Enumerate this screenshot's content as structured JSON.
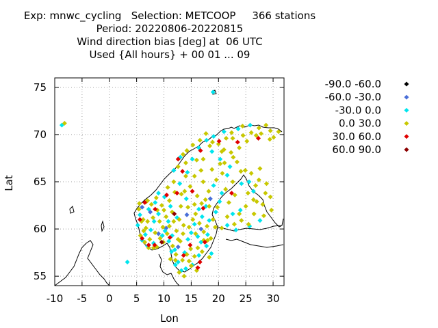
{
  "title_lines": [
    "Exp: mnwc_cycling   Selection: METCOOP     366 stations",
    "Period: 20220806-20220815",
    "Wind direction bias [deg] at  06 UTC",
    "Used {All hours} + 00 01 ... 09"
  ],
  "chart_data": {
    "type": "scatter",
    "xlabel": "Lon",
    "ylabel": "Lat",
    "xlim": [
      -10,
      32
    ],
    "ylim": [
      54,
      76
    ],
    "xticks": [
      -10,
      -5,
      0,
      5,
      10,
      15,
      20,
      25,
      30
    ],
    "yticks": [
      55,
      60,
      65,
      70,
      75
    ],
    "grid": true,
    "legend_position": "right",
    "series": [
      {
        "name": "-90.0 -60.0",
        "color": "#000000",
        "points": []
      },
      {
        "name": "-60.0 -30.0",
        "color": "#4a6fd8",
        "points": [
          [
            6.0,
            62.3
          ],
          [
            7.5,
            61.8
          ],
          [
            9.0,
            59.5
          ],
          [
            10.4,
            60.1
          ],
          [
            12.6,
            58.1
          ],
          [
            14.2,
            61.5
          ],
          [
            16.8,
            60.0
          ],
          [
            18.5,
            63.2
          ]
        ]
      },
      {
        "name": "-30.0 0.0",
        "color": "#00e5ee",
        "points": [
          [
            -8.7,
            71.0
          ],
          [
            3.3,
            56.5
          ],
          [
            19.0,
            74.5
          ],
          [
            5.6,
            61.5
          ],
          [
            5.2,
            60.4
          ],
          [
            6.0,
            58.8
          ],
          [
            7.0,
            58.2
          ],
          [
            8.1,
            58.5
          ],
          [
            9.7,
            59.3
          ],
          [
            10.2,
            59.8
          ],
          [
            10.8,
            60.8
          ],
          [
            11.5,
            59.3
          ],
          [
            12.0,
            57.8
          ],
          [
            12.6,
            56.5
          ],
          [
            13.2,
            55.6
          ],
          [
            13.8,
            57.5
          ],
          [
            14.4,
            58.9
          ],
          [
            15.0,
            59.6
          ],
          [
            15.6,
            60.5
          ],
          [
            16.2,
            59.2
          ],
          [
            17.0,
            61.3
          ],
          [
            17.7,
            62.4
          ],
          [
            16.4,
            57.2
          ],
          [
            15.2,
            56.2
          ],
          [
            14.0,
            55.8
          ],
          [
            18.0,
            59.4
          ],
          [
            18.7,
            57.4
          ],
          [
            12.4,
            61.2
          ],
          [
            11.2,
            62.4
          ],
          [
            10.1,
            63.4
          ],
          [
            9.0,
            63.8
          ],
          [
            8.4,
            62.8
          ],
          [
            7.2,
            62.1
          ],
          [
            12.9,
            64.8
          ],
          [
            14.3,
            66.0
          ],
          [
            15.2,
            67.4
          ],
          [
            16.4,
            68.6
          ],
          [
            17.8,
            69.4
          ],
          [
            19.1,
            69.8
          ],
          [
            21.0,
            70.3
          ],
          [
            23.6,
            70.6
          ],
          [
            25.8,
            71.0
          ],
          [
            13.0,
            67.6
          ],
          [
            18.8,
            68.2
          ],
          [
            20.3,
            67.4
          ],
          [
            21.6,
            65.7
          ],
          [
            22.1,
            66.6
          ],
          [
            24.2,
            64.8
          ],
          [
            25.6,
            65.0
          ],
          [
            26.4,
            64.0
          ],
          [
            24.0,
            62.0
          ],
          [
            22.6,
            61.6
          ],
          [
            21.6,
            60.4
          ],
          [
            25.7,
            60.3
          ],
          [
            27.6,
            60.9
          ],
          [
            23.2,
            59.9
          ],
          [
            20.6,
            63.8
          ],
          [
            19.1,
            64.6
          ],
          [
            11.8,
            66.2
          ],
          [
            14.1,
            63.2
          ],
          [
            16.4,
            62.1
          ],
          [
            9.0,
            61.6
          ],
          [
            8.2,
            60.8
          ],
          [
            6.6,
            59.4
          ],
          [
            7.6,
            59.9
          ],
          [
            10.9,
            58.7
          ],
          [
            11.4,
            57.6
          ],
          [
            12.1,
            56.2
          ],
          [
            16.8,
            58.6
          ],
          [
            17.8,
            58.2
          ],
          [
            18.3,
            60.9
          ],
          [
            19.5,
            61.8
          ],
          [
            20.2,
            62.9
          ]
        ]
      },
      {
        "name": "0.0 30.0",
        "color": "#c8c800",
        "points": [
          [
            -8.2,
            71.2
          ],
          [
            5.4,
            62.1
          ],
          [
            6.2,
            61.0
          ],
          [
            6.7,
            60.1
          ],
          [
            5.7,
            59.3
          ],
          [
            6.5,
            58.6
          ],
          [
            7.4,
            58.9
          ],
          [
            8.7,
            58.1
          ],
          [
            9.3,
            59.0
          ],
          [
            10.6,
            59.5
          ],
          [
            11.0,
            60.3
          ],
          [
            11.8,
            60.8
          ],
          [
            12.3,
            59.8
          ],
          [
            13.0,
            58.7
          ],
          [
            13.5,
            59.5
          ],
          [
            14.6,
            60.2
          ],
          [
            15.3,
            61.0
          ],
          [
            15.8,
            59.5
          ],
          [
            16.5,
            60.6
          ],
          [
            17.3,
            59.7
          ],
          [
            17.9,
            60.3
          ],
          [
            18.6,
            59.0
          ],
          [
            14.9,
            57.9
          ],
          [
            15.6,
            57.1
          ],
          [
            13.4,
            56.7
          ],
          [
            14.6,
            56.6
          ],
          [
            12.8,
            55.4
          ],
          [
            13.7,
            55.0
          ],
          [
            11.6,
            58.2
          ],
          [
            12.2,
            57.3
          ],
          [
            10.4,
            61.3
          ],
          [
            9.6,
            62.5
          ],
          [
            8.8,
            62.0
          ],
          [
            7.7,
            62.6
          ],
          [
            6.8,
            62.9
          ],
          [
            11.0,
            63.0
          ],
          [
            12.0,
            63.9
          ],
          [
            13.2,
            63.7
          ],
          [
            14.8,
            64.5
          ],
          [
            15.6,
            65.6
          ],
          [
            16.8,
            66.2
          ],
          [
            17.2,
            65.0
          ],
          [
            18.2,
            64.0
          ],
          [
            17.6,
            63.1
          ],
          [
            16.1,
            63.5
          ],
          [
            15.6,
            62.6
          ],
          [
            14.4,
            62.3
          ],
          [
            13.1,
            62.4
          ],
          [
            12.6,
            66.6
          ],
          [
            13.5,
            67.9
          ],
          [
            14.2,
            68.3
          ],
          [
            15.3,
            68.9
          ],
          [
            16.6,
            69.4
          ],
          [
            17.7,
            70.1
          ],
          [
            18.9,
            69.2
          ],
          [
            20.0,
            69.0
          ],
          [
            21.4,
            69.6
          ],
          [
            22.4,
            70.2
          ],
          [
            24.4,
            70.9
          ],
          [
            26.0,
            70.2
          ],
          [
            27.4,
            70.7
          ],
          [
            28.7,
            71.0
          ],
          [
            29.5,
            70.4
          ],
          [
            30.1,
            69.7
          ],
          [
            31.0,
            70.3
          ],
          [
            29.4,
            69.5
          ],
          [
            26.9,
            69.9
          ],
          [
            25.2,
            69.3
          ],
          [
            23.8,
            68.6
          ],
          [
            22.3,
            68.1
          ],
          [
            21.0,
            68.4
          ],
          [
            20.3,
            66.9
          ],
          [
            21.1,
            67.0
          ],
          [
            23.4,
            67.1
          ],
          [
            24.9,
            66.2
          ],
          [
            26.0,
            65.9
          ],
          [
            27.6,
            66.4
          ],
          [
            28.8,
            64.8
          ],
          [
            29.5,
            63.4
          ],
          [
            28.1,
            62.6
          ],
          [
            27.0,
            62.9
          ],
          [
            29.7,
            62.0
          ],
          [
            28.3,
            61.4
          ],
          [
            26.5,
            61.6
          ],
          [
            25.0,
            62.4
          ],
          [
            24.2,
            60.9
          ],
          [
            22.9,
            60.5
          ],
          [
            21.6,
            61.3
          ],
          [
            21.9,
            62.8
          ],
          [
            23.0,
            63.6
          ],
          [
            25.4,
            63.8
          ],
          [
            26.8,
            64.6
          ],
          [
            27.4,
            65.2
          ],
          [
            19.6,
            65.2
          ],
          [
            18.8,
            66.3
          ],
          [
            19.8,
            62.3
          ],
          [
            19.0,
            61.0
          ],
          [
            17.3,
            58.8
          ],
          [
            16.2,
            58.0
          ],
          [
            15.0,
            56.1
          ],
          [
            16.0,
            55.6
          ],
          [
            18.3,
            57.0
          ],
          [
            11.2,
            56.8
          ],
          [
            12.6,
            58.9
          ],
          [
            9.8,
            60.2
          ],
          [
            8.4,
            59.6
          ],
          [
            7.0,
            60.8
          ],
          [
            8.0,
            61.2
          ],
          [
            9.2,
            60.8
          ],
          [
            10.0,
            62.0
          ],
          [
            11.5,
            61.8
          ],
          [
            12.8,
            61.0
          ],
          [
            13.6,
            60.4
          ],
          [
            19.4,
            60.2
          ],
          [
            20.6,
            60.1
          ],
          [
            22.6,
            69.6
          ],
          [
            16.0,
            67.3
          ],
          [
            14.0,
            67.0
          ],
          [
            18.4,
            68.8
          ],
          [
            20.6,
            68.2
          ],
          [
            22.7,
            67.6
          ],
          [
            24.1,
            66.1
          ],
          [
            26.4,
            63.1
          ],
          [
            28.6,
            63.8
          ],
          [
            24.5,
            69.9
          ],
          [
            27.8,
            70.1
          ],
          [
            25.5,
            60.5
          ],
          [
            23.8,
            61.6
          ],
          [
            14.0,
            65.6
          ],
          [
            17.2,
            67.4
          ],
          [
            10.7,
            64.4
          ],
          [
            11.8,
            65.0
          ],
          [
            13.8,
            64.0
          ],
          [
            15.8,
            61.6
          ],
          [
            16.9,
            62.7
          ],
          [
            18.3,
            62.4
          ],
          [
            20.7,
            65.9
          ],
          [
            21.3,
            64.2
          ],
          [
            22.6,
            65.0
          ],
          [
            9.9,
            58.6
          ],
          [
            8.1,
            58.0
          ],
          [
            7.2,
            58.0
          ],
          [
            6.3,
            59.8
          ],
          [
            5.9,
            60.8
          ],
          [
            5.5,
            62.7
          ],
          [
            7.0,
            63.0
          ],
          [
            8.6,
            63.3
          ],
          [
            12.1,
            56.7
          ],
          [
            14.2,
            57.3
          ],
          [
            17.0,
            57.6
          ],
          [
            18.0,
            58.8
          ]
        ]
      },
      {
        "name": "30.0 60.0",
        "color": "#e00000",
        "points": [
          [
            6.5,
            62.8
          ],
          [
            8.4,
            62.1
          ],
          [
            5.6,
            61.0
          ],
          [
            6.0,
            59.0
          ],
          [
            7.2,
            58.3
          ],
          [
            8.3,
            58.3
          ],
          [
            11.1,
            59.1
          ],
          [
            12.4,
            63.8
          ],
          [
            13.4,
            66.1
          ],
          [
            12.6,
            67.4
          ],
          [
            17.2,
            62.2
          ],
          [
            17.5,
            58.6
          ],
          [
            13.6,
            57.2
          ],
          [
            16.6,
            56.5
          ],
          [
            16.2,
            55.9
          ],
          [
            16.7,
            68.3
          ],
          [
            20.1,
            69.3
          ],
          [
            23.5,
            69.2
          ],
          [
            27.3,
            69.6
          ],
          [
            14.8,
            58.3
          ],
          [
            10.5,
            63.6
          ],
          [
            15.2,
            64.0
          ],
          [
            22.4,
            63.8
          ]
        ]
      },
      {
        "name": "60.0 90.0",
        "color": "#8b0000",
        "points": [
          [
            9.6,
            58.6
          ],
          [
            11.9,
            61.6
          ]
        ]
      }
    ]
  }
}
